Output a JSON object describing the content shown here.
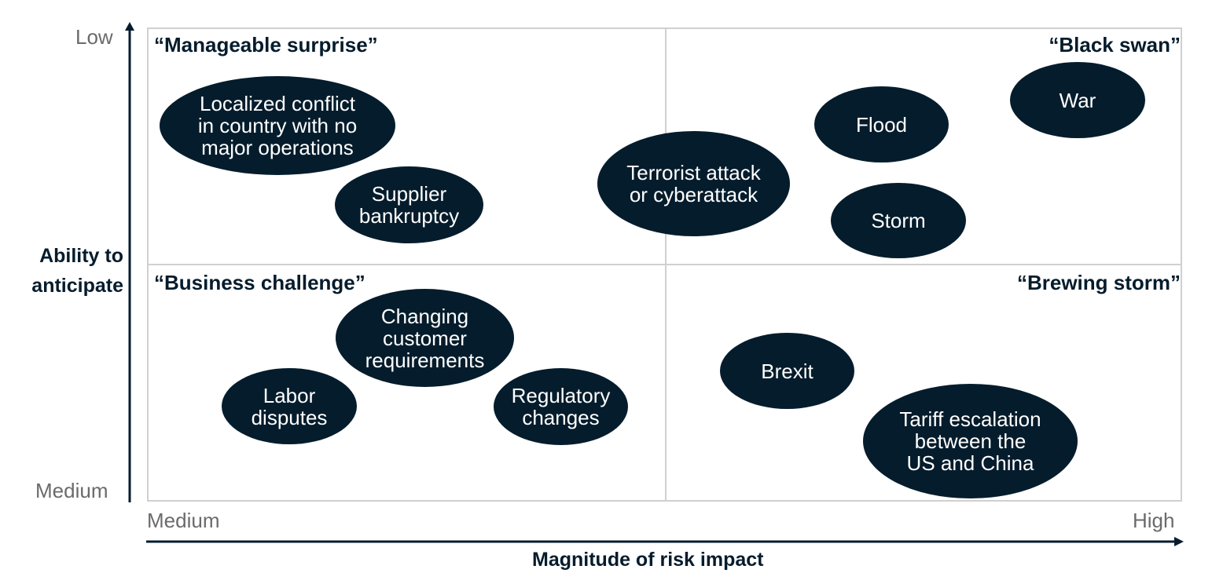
{
  "y_axis": {
    "title_line1": "Ability to",
    "title_line2": "anticipate",
    "top_label": "Low",
    "bottom_label": "Medium"
  },
  "x_axis": {
    "title": "Magnitude of risk impact",
    "left_label": "Medium",
    "right_label": "High"
  },
  "quadrants": {
    "top_left": "“Manageable surprise”",
    "top_right": "“Black swan”",
    "bottom_left": "“Business challenge”",
    "bottom_right": "“Brewing storm”"
  },
  "risks": [
    {
      "label": "Localized conflict\nin country with no\nmajor operations"
    },
    {
      "label": "Supplier\nbankruptcy"
    },
    {
      "label": "Terrorist attack\nor cyberattack"
    },
    {
      "label": "Flood"
    },
    {
      "label": "War"
    },
    {
      "label": "Storm"
    },
    {
      "label": "Changing\ncustomer\nrequirements"
    },
    {
      "label": "Labor\ndisputes"
    },
    {
      "label": "Regulatory\nchanges"
    },
    {
      "label": "Brexit"
    },
    {
      "label": "Tariff escalation\nbetween the\nUS and China"
    }
  ],
  "colors": {
    "bubble": "#051c2c",
    "grid": "#d0d0d0",
    "tick_text": "#6b6b6b"
  }
}
